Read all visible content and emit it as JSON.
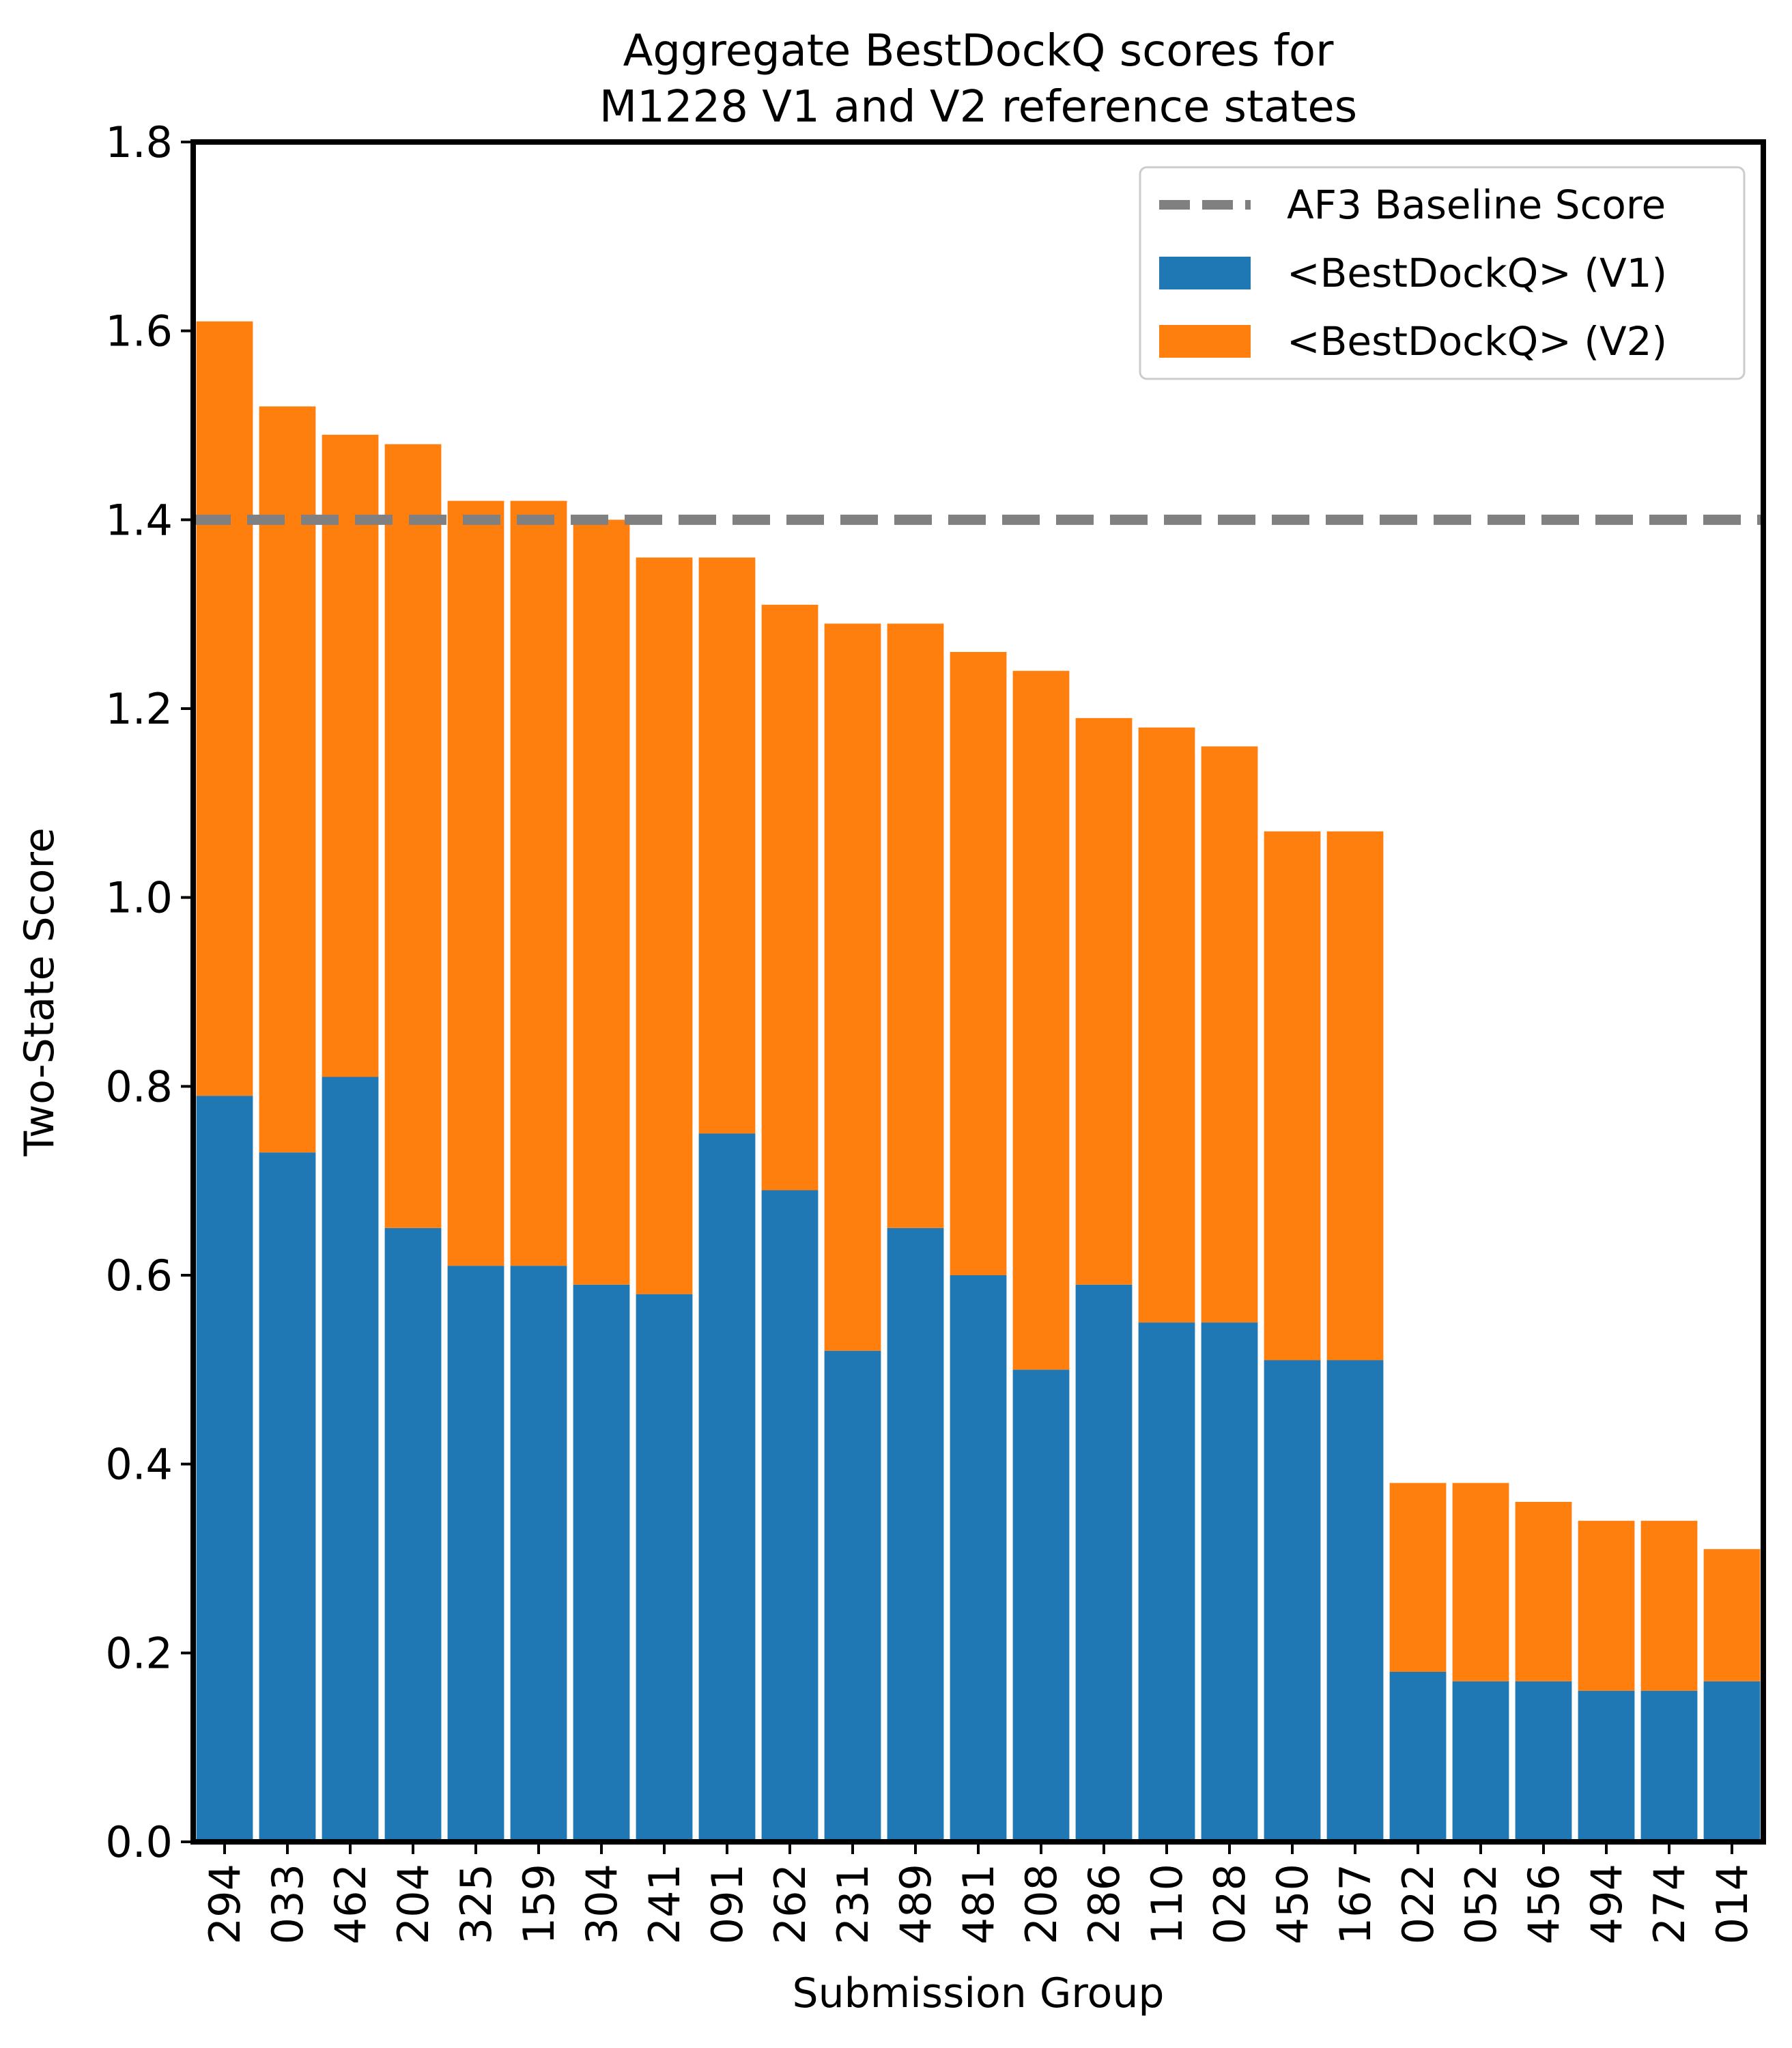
{
  "chart_data": {
    "type": "bar",
    "stacked": true,
    "title": "Aggregate BestDockQ scores for\nM1228 V1 and V2 reference states",
    "xlabel": "Submission Group",
    "ylabel": "Two-State Score",
    "ylim": [
      0,
      1.8
    ],
    "yticks": [
      "0.0",
      "0.2",
      "0.4",
      "0.6",
      "0.8",
      "1.0",
      "1.2",
      "1.4",
      "1.6",
      "1.8"
    ],
    "categories": [
      "294",
      "033",
      "462",
      "204",
      "325",
      "159",
      "304",
      "241",
      "091",
      "262",
      "231",
      "489",
      "481",
      "208",
      "286",
      "110",
      "028",
      "450",
      "167",
      "022",
      "052",
      "456",
      "494",
      "274",
      "014"
    ],
    "series": [
      {
        "name": "<BestDockQ> (V1)",
        "color": "#1f77b4",
        "values": [
          0.79,
          0.73,
          0.81,
          0.65,
          0.61,
          0.61,
          0.59,
          0.58,
          0.75,
          0.69,
          0.52,
          0.65,
          0.6,
          0.5,
          0.59,
          0.55,
          0.55,
          0.51,
          0.51,
          0.18,
          0.17,
          0.17,
          0.16,
          0.16,
          0.17
        ]
      },
      {
        "name": "<BestDockQ> (V2)",
        "color": "#ff7f0e",
        "values": [
          0.82,
          0.79,
          0.68,
          0.83,
          0.81,
          0.81,
          0.81,
          0.78,
          0.61,
          0.62,
          0.77,
          0.64,
          0.66,
          0.74,
          0.6,
          0.63,
          0.61,
          0.56,
          0.56,
          0.2,
          0.21,
          0.19,
          0.18,
          0.18,
          0.14
        ]
      }
    ],
    "baseline": {
      "name": "AF3 Baseline Score",
      "value": 1.4,
      "color": "#808080",
      "style": "dashed"
    },
    "legend_position": "top-right",
    "grid": false
  }
}
